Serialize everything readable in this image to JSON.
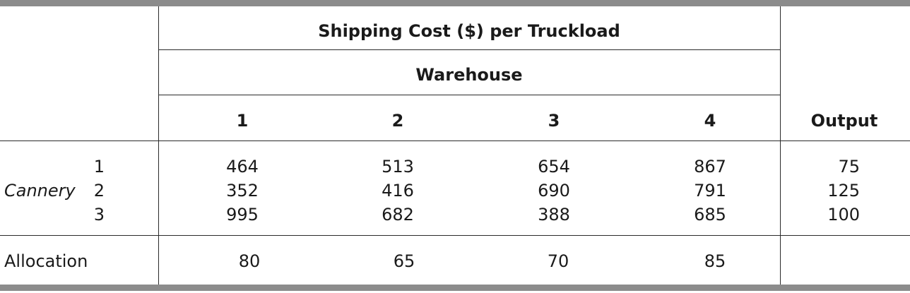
{
  "table": {
    "title": "Shipping Cost ($) per Truckload",
    "group_header": "Warehouse",
    "warehouse_columns": [
      "1",
      "2",
      "3",
      "4"
    ],
    "output_header": "Output",
    "row_group_label": "Cannery",
    "rows": [
      {
        "id": "1",
        "costs": [
          "464",
          "513",
          "654",
          "867"
        ],
        "output": "75"
      },
      {
        "id": "2",
        "costs": [
          "352",
          "416",
          "690",
          "791"
        ],
        "output": "125"
      },
      {
        "id": "3",
        "costs": [
          "995",
          "682",
          "388",
          "685"
        ],
        "output": "100"
      }
    ],
    "allocation_label": "Allocation",
    "allocation": [
      "80",
      "65",
      "70",
      "85"
    ]
  }
}
